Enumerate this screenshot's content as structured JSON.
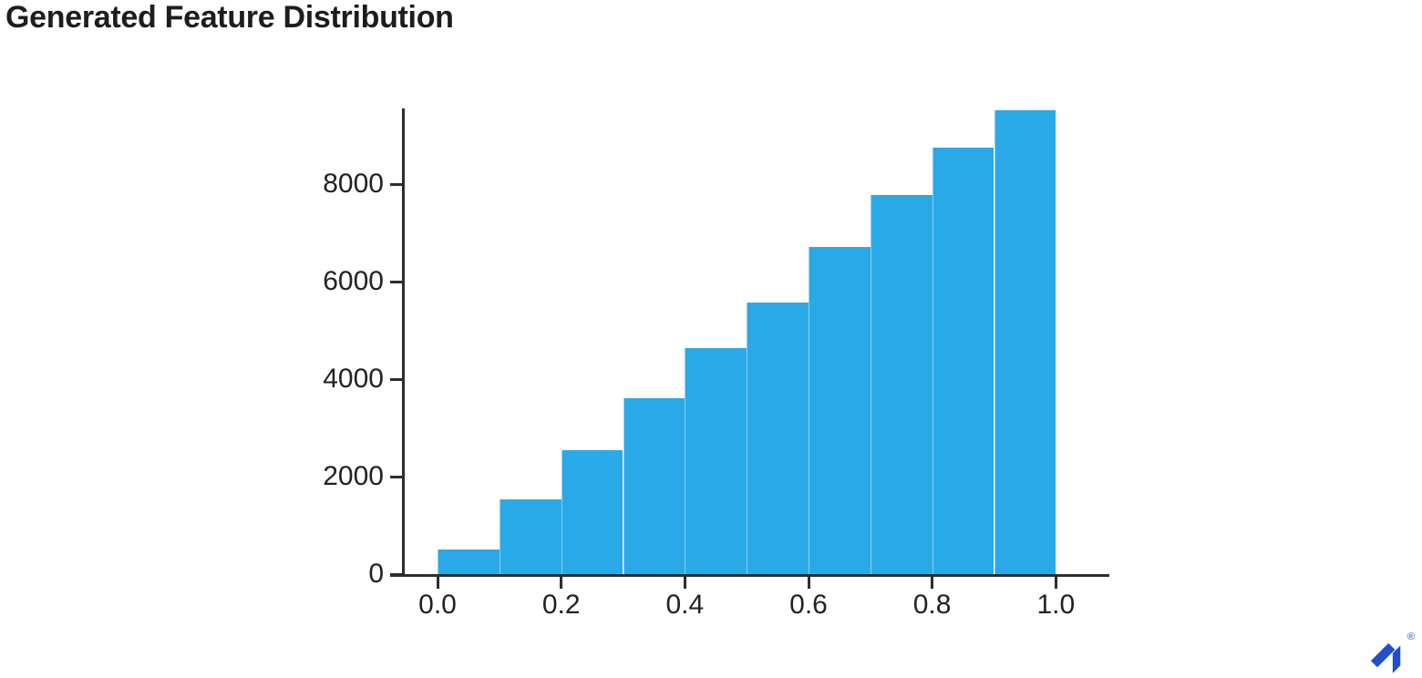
{
  "page": {
    "title": "Generated Feature Distribution"
  },
  "branding": {
    "logo": "toptal-logo",
    "logo_color": "#204ECF",
    "registered_mark": "®"
  },
  "chart_data": {
    "type": "bar",
    "subtype": "histogram",
    "title": "Generated Feature Distribution",
    "xlabel": "",
    "ylabel": "",
    "grid": false,
    "legend": null,
    "bar_color": "#2AA9E8",
    "axis_color": "#2d2d2d",
    "bin_edges": [
      0.0,
      0.1,
      0.2,
      0.3,
      0.4,
      0.5,
      0.6,
      0.7,
      0.8,
      0.9,
      1.0
    ],
    "values": [
      500,
      1530,
      2540,
      3610,
      4640,
      5570,
      6710,
      7780,
      8750,
      9520
    ],
    "xticks": [
      0.0,
      0.2,
      0.4,
      0.6,
      0.8,
      1.0
    ],
    "xtick_labels": [
      "0.0",
      "0.2",
      "0.4",
      "0.6",
      "0.8",
      "1.0"
    ],
    "yticks": [
      0,
      2000,
      4000,
      6000,
      8000
    ],
    "ytick_labels": [
      "0",
      "2000",
      "4000",
      "6000",
      "8000"
    ],
    "xlim": [
      -0.055,
      1.087
    ],
    "ylim": [
      0,
      9560
    ]
  }
}
